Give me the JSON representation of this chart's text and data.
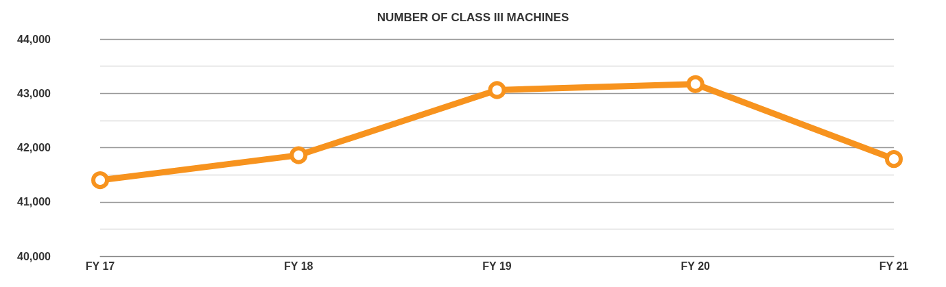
{
  "chart_data": {
    "type": "line",
    "title": "NUMBER OF CLASS III MACHINES",
    "categories": [
      "FY 17",
      "FY 18",
      "FY 19",
      "FY 20",
      "FY 21"
    ],
    "series": [
      {
        "color": "#f7931e",
        "values": [
          41400,
          41860,
          43060,
          43170,
          41790
        ]
      }
    ],
    "ylim": [
      40000,
      44000
    ],
    "yticks": [
      {
        "value": 40000,
        "label": "40,000"
      },
      {
        "value": 40500,
        "label": null
      },
      {
        "value": 41000,
        "label": "41,000"
      },
      {
        "value": 41500,
        "label": null
      },
      {
        "value": 42000,
        "label": "42,000"
      },
      {
        "value": 42500,
        "label": null
      },
      {
        "value": 43000,
        "label": "43,000"
      },
      {
        "value": 43500,
        "label": null
      },
      {
        "value": 44000,
        "label": "44,000"
      }
    ],
    "grid": "y",
    "marker": "circle",
    "line_style": "solid"
  }
}
